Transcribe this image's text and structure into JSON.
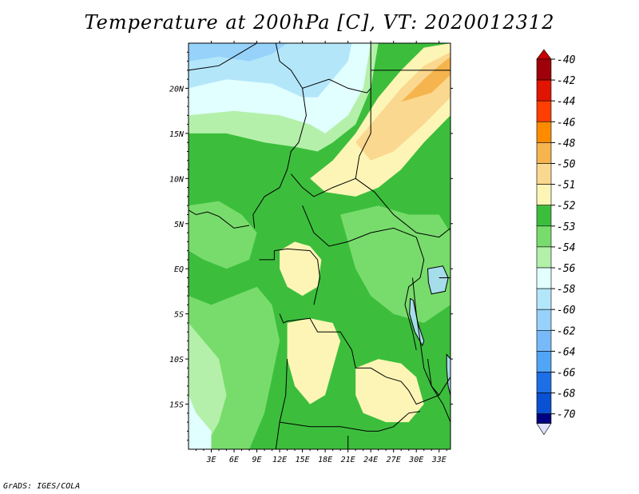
{
  "title": "Temperature at 200hPa [C], VT: 2020012312",
  "credit": "GrADS: IGES/COLA",
  "map": {
    "lon_range": [
      0,
      34.5
    ],
    "lat_range": [
      -20,
      25
    ],
    "x_ticks": [
      {
        "value": 3,
        "label": "3E"
      },
      {
        "value": 6,
        "label": "6E"
      },
      {
        "value": 9,
        "label": "9E"
      },
      {
        "value": 12,
        "label": "12E"
      },
      {
        "value": 15,
        "label": "15E"
      },
      {
        "value": 18,
        "label": "18E"
      },
      {
        "value": 21,
        "label": "21E"
      },
      {
        "value": 24,
        "label": "24E"
      },
      {
        "value": 27,
        "label": "27E"
      },
      {
        "value": 30,
        "label": "30E"
      },
      {
        "value": 33,
        "label": "33E"
      }
    ],
    "y_ticks": [
      {
        "value": 20,
        "label": "20N"
      },
      {
        "value": 15,
        "label": "15N"
      },
      {
        "value": 10,
        "label": "10N"
      },
      {
        "value": 5,
        "label": "5N"
      },
      {
        "value": 0,
        "label": "EQ"
      },
      {
        "value": -5,
        "label": "5S"
      },
      {
        "value": -10,
        "label": "10S"
      },
      {
        "value": -15,
        "label": "15S"
      }
    ],
    "regions": [
      {
        "level": "-52",
        "points": [
          [
            0,
            5
          ],
          [
            4,
            7
          ],
          [
            9,
            8
          ],
          [
            12,
            10
          ],
          [
            14,
            12
          ],
          [
            16,
            14
          ],
          [
            20,
            16
          ],
          [
            22,
            19
          ],
          [
            26,
            22
          ],
          [
            30,
            24
          ],
          [
            34.5,
            25
          ],
          [
            34.5,
            -20
          ],
          [
            0,
            -20
          ]
        ]
      },
      {
        "level": "-53",
        "points": [
          [
            0,
            -3
          ],
          [
            3,
            -4
          ],
          [
            6,
            -3
          ],
          [
            9,
            -2
          ],
          [
            11,
            -4
          ],
          [
            12,
            -8
          ],
          [
            11,
            -12
          ],
          [
            10,
            -16
          ],
          [
            8,
            -20
          ],
          [
            0,
            -20
          ]
        ]
      },
      {
        "level": "-53",
        "points": [
          [
            20,
            6
          ],
          [
            25,
            7
          ],
          [
            29,
            6
          ],
          [
            33,
            6
          ],
          [
            34.5,
            4
          ],
          [
            34.5,
            -4
          ],
          [
            31,
            -6
          ],
          [
            27,
            -5
          ],
          [
            24,
            -3
          ],
          [
            22,
            0
          ]
        ]
      },
      {
        "level": "-53",
        "points": [
          [
            0,
            7
          ],
          [
            4,
            7.5
          ],
          [
            7,
            6
          ],
          [
            9,
            4
          ],
          [
            8,
            1
          ],
          [
            5,
            0
          ],
          [
            2,
            1
          ],
          [
            0,
            2
          ]
        ]
      },
      {
        "level": "-54",
        "points": [
          [
            0,
            -6
          ],
          [
            2,
            -8
          ],
          [
            4,
            -10
          ],
          [
            5,
            -14
          ],
          [
            4,
            -17
          ],
          [
            2,
            -20
          ],
          [
            0,
            -20
          ]
        ]
      },
      {
        "level": "-56",
        "points": [
          [
            0,
            -14
          ],
          [
            1,
            -16
          ],
          [
            3,
            -18
          ],
          [
            3,
            -20
          ],
          [
            0,
            -20
          ]
        ]
      },
      {
        "level": "-54",
        "points": [
          [
            0,
            15
          ],
          [
            5,
            15
          ],
          [
            10,
            14
          ],
          [
            14,
            13.5
          ],
          [
            17,
            13
          ],
          [
            19,
            14
          ],
          [
            22,
            16
          ],
          [
            24,
            20
          ],
          [
            25,
            25
          ],
          [
            0,
            25
          ]
        ]
      },
      {
        "level": "-56",
        "points": [
          [
            0,
            17
          ],
          [
            6,
            17.5
          ],
          [
            12,
            17
          ],
          [
            16,
            16
          ],
          [
            18,
            15
          ],
          [
            21,
            17
          ],
          [
            23,
            20
          ],
          [
            24,
            25
          ],
          [
            0,
            25
          ]
        ]
      },
      {
        "level": "-58",
        "points": [
          [
            0,
            20
          ],
          [
            5,
            21
          ],
          [
            11,
            20.5
          ],
          [
            15,
            19
          ],
          [
            17,
            19
          ],
          [
            19,
            21
          ],
          [
            21,
            23
          ],
          [
            21.5,
            25
          ],
          [
            0,
            25
          ]
        ]
      },
      {
        "level": "-60",
        "points": [
          [
            0,
            23
          ],
          [
            4,
            23.5
          ],
          [
            8,
            23
          ],
          [
            11,
            23.8
          ],
          [
            13,
            25
          ],
          [
            0,
            25
          ]
        ]
      },
      {
        "level": "-51",
        "points": [
          [
            16,
            10
          ],
          [
            19,
            12
          ],
          [
            22,
            15
          ],
          [
            25,
            19
          ],
          [
            28,
            22
          ],
          [
            31,
            24.5
          ],
          [
            34.5,
            25
          ],
          [
            34.5,
            17
          ],
          [
            31,
            14
          ],
          [
            28,
            11
          ],
          [
            25,
            9
          ],
          [
            22,
            8
          ],
          [
            18,
            8.5
          ]
        ]
      },
      {
        "level": "-50",
        "points": [
          [
            22,
            14
          ],
          [
            25,
            17
          ],
          [
            28,
            20
          ],
          [
            31,
            22.5
          ],
          [
            34.5,
            24
          ],
          [
            34.5,
            19
          ],
          [
            31,
            16
          ],
          [
            27,
            13
          ],
          [
            24,
            12
          ]
        ]
      },
      {
        "level": "-48",
        "points": [
          [
            28,
            18.5
          ],
          [
            31,
            21
          ],
          [
            33,
            22.5
          ],
          [
            34.5,
            23.5
          ],
          [
            34.5,
            21.5
          ],
          [
            32,
            19.5
          ]
        ]
      },
      {
        "level": "-51",
        "points": [
          [
            12,
            2
          ],
          [
            14,
            3
          ],
          [
            16,
            2.5
          ],
          [
            17.5,
            1
          ],
          [
            17,
            -2
          ],
          [
            15,
            -3
          ],
          [
            13,
            -2
          ],
          [
            12,
            0
          ]
        ]
      },
      {
        "level": "-51",
        "points": [
          [
            13,
            -6
          ],
          [
            16,
            -5.5
          ],
          [
            19,
            -6
          ],
          [
            20,
            -8
          ],
          [
            19,
            -11
          ],
          [
            18,
            -14
          ],
          [
            16,
            -15
          ],
          [
            14,
            -13
          ],
          [
            13,
            -10
          ]
        ]
      },
      {
        "level": "-51",
        "points": [
          [
            22,
            -11
          ],
          [
            25,
            -10
          ],
          [
            28,
            -10.5
          ],
          [
            30,
            -12
          ],
          [
            31,
            -15
          ],
          [
            29,
            -17
          ],
          [
            26,
            -17
          ],
          [
            23,
            -16
          ],
          [
            22,
            -14
          ]
        ]
      }
    ],
    "borders": [
      [
        [
          0,
          22
        ],
        [
          4,
          22.5
        ],
        [
          7,
          24
        ],
        [
          9,
          25
        ]
      ],
      [
        [
          11.5,
          25
        ],
        [
          12,
          23
        ],
        [
          13.5,
          22
        ],
        [
          15,
          20
        ],
        [
          15.5,
          17
        ],
        [
          14.5,
          14
        ],
        [
          13.5,
          13
        ],
        [
          13,
          11
        ],
        [
          12,
          9
        ],
        [
          10,
          8
        ],
        [
          8.5,
          6
        ],
        [
          8.7,
          4.5
        ]
      ],
      [
        [
          15,
          20
        ],
        [
          18.5,
          21
        ],
        [
          21,
          20
        ],
        [
          23.5,
          19.5
        ],
        [
          24,
          20
        ],
        [
          24,
          25
        ]
      ],
      [
        [
          24,
          22
        ],
        [
          34.5,
          22
        ]
      ],
      [
        [
          24,
          20
        ],
        [
          24,
          15
        ],
        [
          22.5,
          12.5
        ],
        [
          22,
          10
        ],
        [
          19,
          9
        ],
        [
          16.5,
          8
        ],
        [
          15,
          9
        ],
        [
          13.5,
          10.5
        ]
      ],
      [
        [
          22,
          10
        ],
        [
          24.5,
          8.5
        ],
        [
          27,
          6
        ],
        [
          30,
          4
        ],
        [
          33,
          3.5
        ],
        [
          34.5,
          4.5
        ]
      ],
      [
        [
          15,
          7
        ],
        [
          16.5,
          4
        ],
        [
          18.5,
          2.5
        ],
        [
          21,
          3
        ],
        [
          24,
          4
        ],
        [
          27,
          4.5
        ],
        [
          30,
          3.5
        ]
      ],
      [
        [
          11.3,
          2
        ],
        [
          13,
          2.2
        ],
        [
          16,
          2
        ],
        [
          17,
          1
        ],
        [
          17.3,
          -1
        ],
        [
          16.5,
          -4
        ]
      ],
      [
        [
          11.3,
          2
        ],
        [
          11.3,
          1
        ],
        [
          9.3,
          1
        ]
      ],
      [
        [
          12,
          -5
        ],
        [
          12.5,
          -6
        ],
        [
          13,
          -5.8
        ],
        [
          16,
          -5.5
        ],
        [
          17,
          -7
        ],
        [
          19,
          -7
        ],
        [
          20,
          -7
        ],
        [
          21.5,
          -9
        ],
        [
          22,
          -11
        ],
        [
          24,
          -11
        ],
        [
          26,
          -12
        ],
        [
          28,
          -12.5
        ],
        [
          29,
          -13.5
        ],
        [
          30,
          -15
        ],
        [
          33,
          -14
        ],
        [
          34.5,
          -12
        ]
      ],
      [
        [
          12,
          -17
        ],
        [
          16,
          -17.5
        ],
        [
          20,
          -17.5
        ],
        [
          23.5,
          -18
        ],
        [
          25,
          -18
        ],
        [
          27,
          -17.5
        ],
        [
          29,
          -16
        ],
        [
          30.5,
          -15.8
        ]
      ],
      [
        [
          21,
          -18.5
        ],
        [
          21,
          -20
        ]
      ],
      [
        [
          29.5,
          -1
        ],
        [
          30,
          -5
        ],
        [
          30.5,
          -8
        ],
        [
          31,
          -11
        ],
        [
          32,
          -13
        ],
        [
          33,
          -14
        ]
      ],
      [
        [
          30,
          3.5
        ],
        [
          31,
          1
        ],
        [
          30.5,
          -1
        ],
        [
          29,
          -2
        ],
        [
          28.5,
          -4
        ],
        [
          29.5,
          -7
        ],
        [
          30,
          -9
        ]
      ],
      [
        [
          33,
          -1
        ],
        [
          34.5,
          -1
        ]
      ],
      [
        [
          0,
          6.5
        ],
        [
          1,
          6
        ],
        [
          2.5,
          6.3
        ],
        [
          4,
          5.8
        ],
        [
          6,
          4.5
        ],
        [
          8,
          4.8
        ]
      ],
      [
        [
          13,
          -10
        ],
        [
          12.8,
          -14
        ],
        [
          12,
          -17
        ],
        [
          11.5,
          -20
        ]
      ],
      [
        [
          31.5,
          -10
        ],
        [
          32,
          -13
        ],
        [
          33.5,
          -15
        ],
        [
          34.5,
          -17
        ]
      ]
    ],
    "lakes": [
      {
        "name": "Lake Victoria",
        "points": [
          [
            31.5,
            0
          ],
          [
            33.5,
            0.3
          ],
          [
            34.2,
            -1
          ],
          [
            33.8,
            -2.5
          ],
          [
            32,
            -2.8
          ],
          [
            31.6,
            -1.5
          ]
        ]
      },
      {
        "name": "Lake Tanganyika",
        "points": [
          [
            29.2,
            -3.3
          ],
          [
            29.6,
            -3.5
          ],
          [
            30.2,
            -6
          ],
          [
            31,
            -8
          ],
          [
            30.8,
            -8.5
          ],
          [
            29.8,
            -7
          ],
          [
            29.1,
            -5
          ]
        ]
      },
      {
        "name": "Lake Malawi",
        "points": [
          [
            34,
            -9.5
          ],
          [
            34.5,
            -10
          ],
          [
            34.5,
            -14
          ],
          [
            34.2,
            -13
          ],
          [
            34,
            -11
          ]
        ]
      }
    ],
    "colorbar": [
      {
        "label": "-40",
        "color": "#a0000a"
      },
      {
        "label": "-42",
        "color": "#e11400"
      },
      {
        "label": "-44",
        "color": "#ff3e00"
      },
      {
        "label": "-46",
        "color": "#ff8c00"
      },
      {
        "label": "-48",
        "color": "#f5b44e"
      },
      {
        "label": "-50",
        "color": "#fbd88f"
      },
      {
        "label": "-51",
        "color": "#fdf5b6"
      },
      {
        "label": "-52",
        "color": "#3cbe3c"
      },
      {
        "label": "-53",
        "color": "#78dc6c"
      },
      {
        "label": "-54",
        "color": "#b4f0aa"
      },
      {
        "label": "-56",
        "color": "#e1ffff"
      },
      {
        "label": "-58",
        "color": "#b4e6fa"
      },
      {
        "label": "-60",
        "color": "#96d2fa"
      },
      {
        "label": "-62",
        "color": "#78b9fa"
      },
      {
        "label": "-64",
        "color": "#50a5f5"
      },
      {
        "label": "-66",
        "color": "#1e6ee6"
      },
      {
        "label": "-68",
        "color": "#0a50d2"
      },
      {
        "label": "-70",
        "color": "#0a28a0"
      }
    ],
    "colorbar_top_color": "#c80000",
    "colorbar_bottom_color": "#000080",
    "colorbar_below_color": "#e1e1ff",
    "background_level": "-52"
  }
}
